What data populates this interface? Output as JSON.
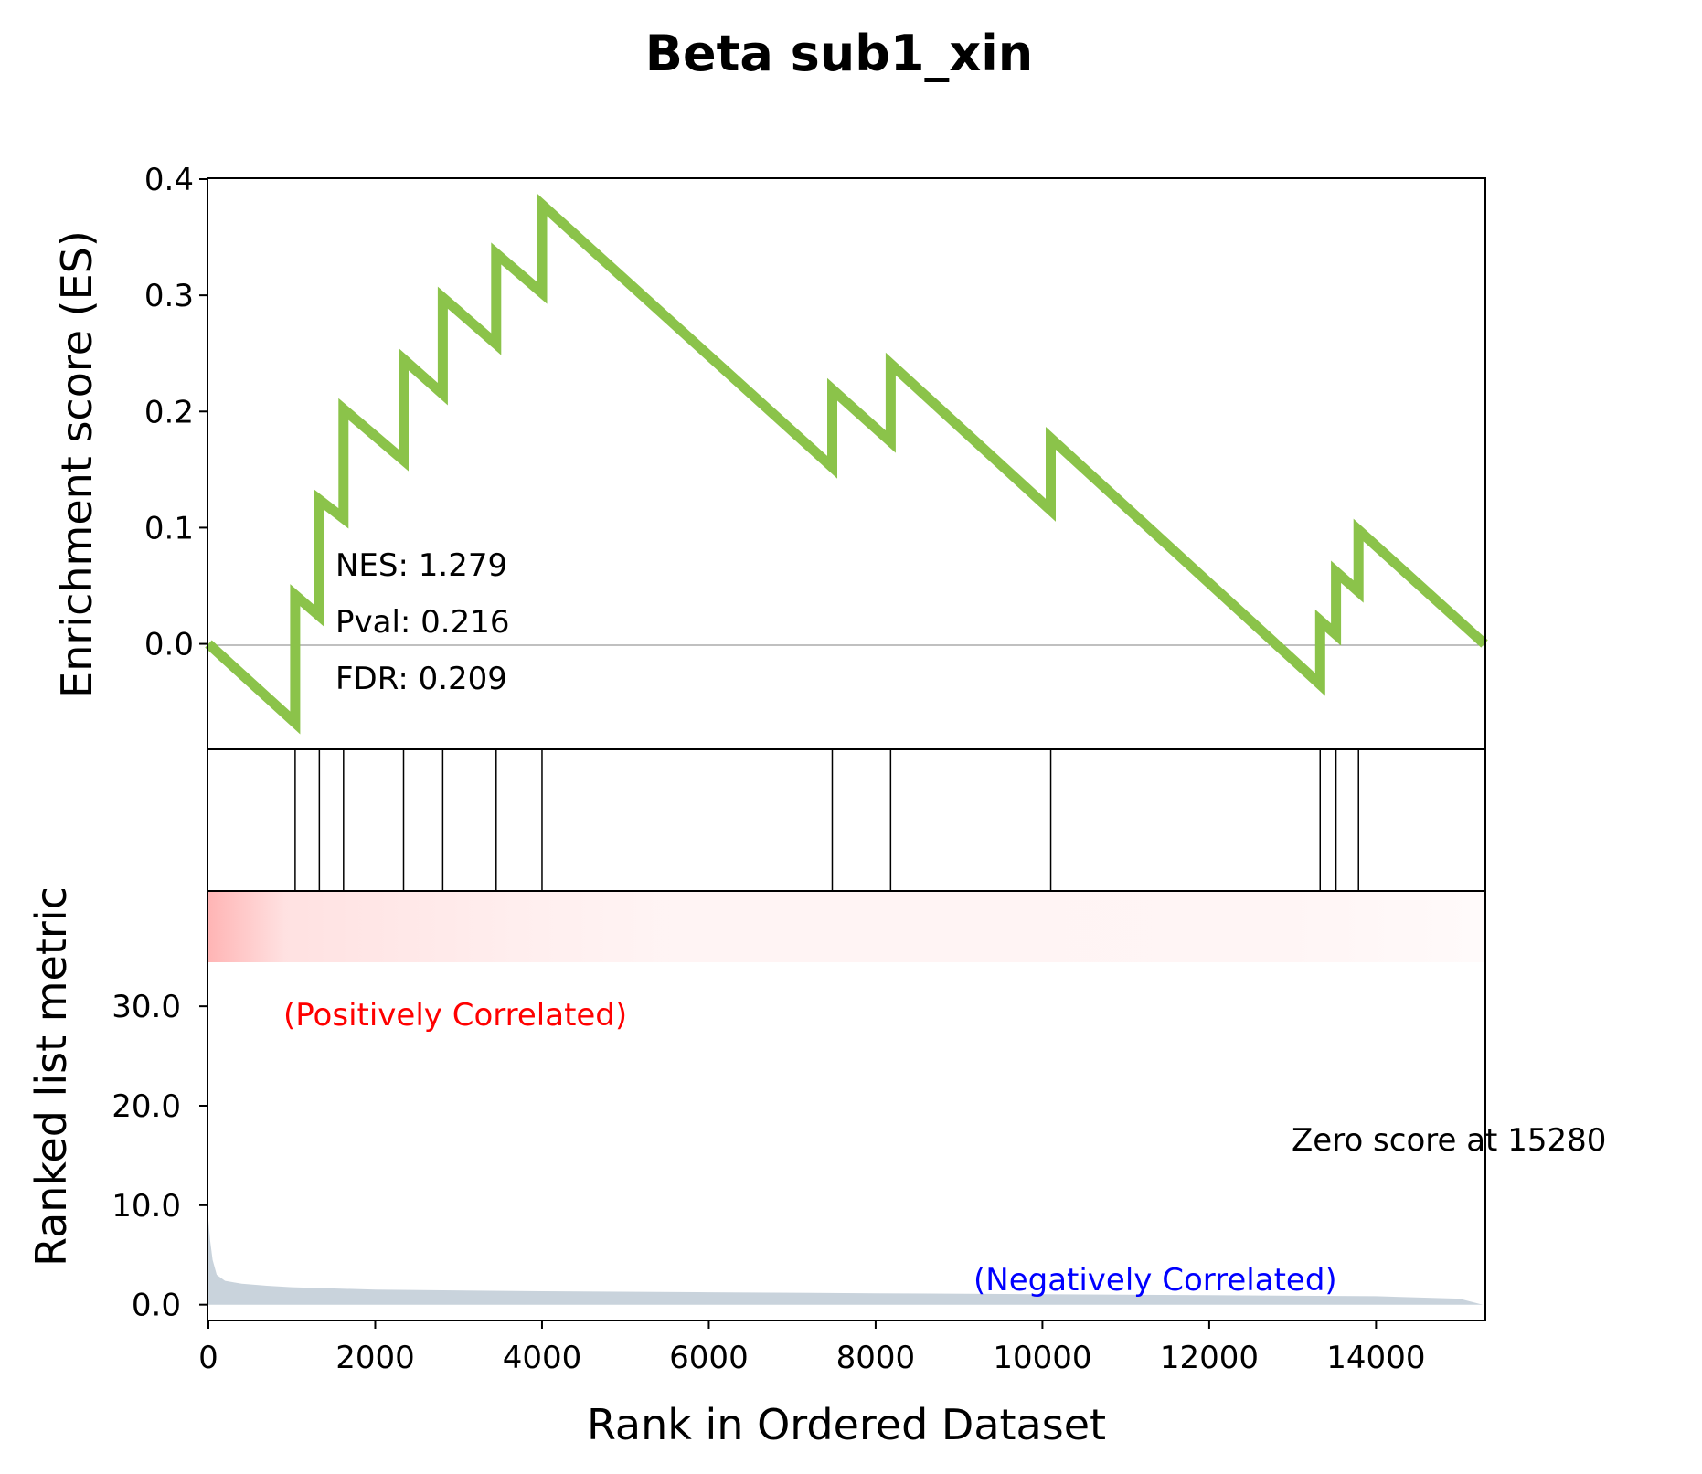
{
  "chart_data": {
    "type": "line",
    "title": "Beta sub1_xin",
    "xlabel": "Rank in Ordered Dataset",
    "xlim": [
      0,
      15300
    ],
    "x_ticks": [
      0,
      2000,
      4000,
      6000,
      8000,
      10000,
      12000,
      14000
    ],
    "es_panel": {
      "ylabel": "Enrichment score (ES)",
      "ylim": [
        -0.09,
        0.4
      ],
      "y_ticks": [
        "0.0",
        "0.1",
        "0.2",
        "0.3",
        "0.4"
      ],
      "y_tick_values": [
        0.0,
        0.1,
        0.2,
        0.3,
        0.4
      ],
      "line_color": "#8bc34a",
      "zero_line_color": "#808080",
      "series": [
        {
          "x": [
            0,
            1040,
            1040,
            1330,
            1330,
            1620,
            1620,
            2340,
            2340,
            2810,
            2810,
            3450,
            3450,
            4000,
            4000,
            7480,
            7480,
            8180,
            8180,
            10100,
            10100,
            13330,
            13330,
            13520,
            13520,
            13790,
            13790,
            15300
          ],
          "y": [
            0.0,
            -0.068,
            0.042,
            0.024,
            0.124,
            0.108,
            0.202,
            0.158,
            0.245,
            0.215,
            0.298,
            0.258,
            0.336,
            0.302,
            0.378,
            0.152,
            0.219,
            0.174,
            0.241,
            0.115,
            0.177,
            -0.035,
            0.02,
            0.008,
            0.062,
            0.045,
            0.098,
            0.0
          ]
        }
      ]
    },
    "annotations": {
      "nes": "NES: 1.279",
      "pval": "Pval: 0.216",
      "fdr": "FDR: 0.209"
    },
    "hits_panel": {
      "hit_positions": [
        1040,
        1330,
        1620,
        2340,
        2810,
        3450,
        4000,
        7480,
        8180,
        10100,
        13330,
        13520,
        13790
      ]
    },
    "rank_panel": {
      "ylabel": "Ranked list metric",
      "ylim": [
        -1.5,
        41.5
      ],
      "y_ticks": [
        "0.0",
        "10.0",
        "20.0",
        "30.0"
      ],
      "y_tick_values": [
        0,
        10,
        20,
        30
      ],
      "fill_color": "#c9d3dc",
      "heat_color": "#ff5a5a",
      "positive_label": "(Positively Correlated)",
      "positive_color": "#ff0000",
      "negative_label": "(Negatively Correlated)",
      "negative_color": "#0000ff",
      "zero_score_label": "Zero score at 15280",
      "series": [
        {
          "x": [
            0,
            20,
            50,
            100,
            200,
            400,
            700,
            1000,
            2000,
            4000,
            6000,
            8000,
            10000,
            12000,
            14000,
            15000,
            15280
          ],
          "y": [
            8.5,
            6.5,
            4.5,
            3.0,
            2.4,
            2.1,
            1.9,
            1.75,
            1.5,
            1.35,
            1.25,
            1.15,
            1.05,
            0.95,
            0.85,
            0.6,
            0.0
          ]
        }
      ]
    }
  }
}
